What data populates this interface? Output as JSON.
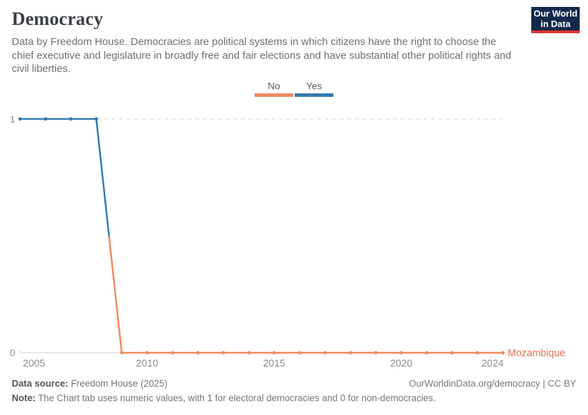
{
  "header": {
    "title": "Democracy",
    "subtitle": "Data by Freedom House. Democracies are political systems in which citizens have the right to choose the chief executive and legislature in broadly free and fair elections and have substantial other political rights and civil liberties.",
    "logo": {
      "line1": "Our World",
      "line2": "in Data",
      "bg_color": "#12294D",
      "accent_color": "#E0322E"
    }
  },
  "legend": {
    "items": [
      {
        "label": "No",
        "color": "#F0885E"
      },
      {
        "label": "Yes",
        "color": "#3379AF"
      }
    ]
  },
  "chart_data": {
    "type": "line",
    "title": "Democracy",
    "entity": "Mozambique",
    "entity_label_color": "#E4724C",
    "x": [
      2005,
      2006,
      2007,
      2008,
      2009,
      2010,
      2011,
      2012,
      2013,
      2014,
      2015,
      2016,
      2017,
      2018,
      2019,
      2020,
      2021,
      2022,
      2023,
      2024
    ],
    "series": [
      {
        "name": "Mozambique",
        "values": [
          1,
          1,
          1,
          1,
          0,
          0,
          0,
          0,
          0,
          0,
          0,
          0,
          0,
          0,
          0,
          0,
          0,
          0,
          0,
          0
        ]
      }
    ],
    "value_colors": {
      "0": "#F0885E",
      "1": "#3379AF"
    },
    "value_labels": {
      "0": "No",
      "1": "Yes"
    },
    "xticks": [
      2005,
      2010,
      2015,
      2020,
      2024
    ],
    "yticks": [
      0,
      1
    ],
    "ylim": [
      0,
      1
    ],
    "xlabel": "",
    "ylabel": "",
    "grid": "dashed horizontal gridline at y=1, solid axis at y=0",
    "legend_position": "top-center",
    "tick_color": "#8F8F8F"
  },
  "footer": {
    "source_label": "Data source:",
    "source_value": " Freedom House (2025)",
    "link": "OurWorldinData.org/democracy | CC BY",
    "note_label": "Note:",
    "note_value": " The Chart tab uses numeric values, with 1 for electoral democracies and 0 for non-democracies."
  }
}
